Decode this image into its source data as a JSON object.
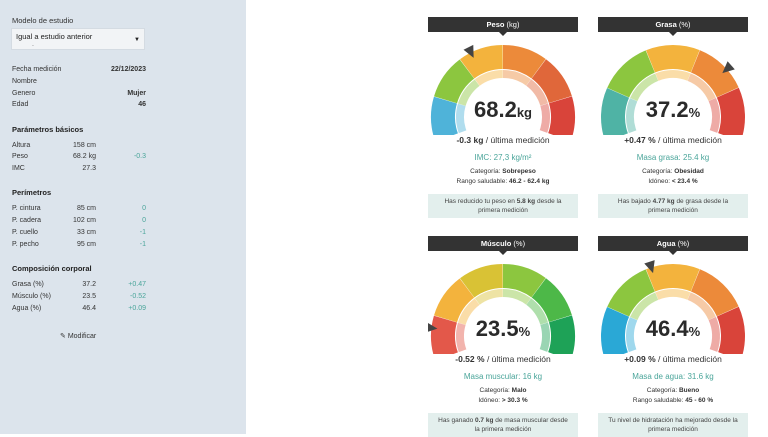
{
  "sidebar": {
    "estudio_label": "Modelo de estudio",
    "estudio_value": "Igual a estudio anterior",
    "estudio_dot": ".",
    "info": [
      {
        "key": "Fecha medición",
        "value": "22/12/2023"
      },
      {
        "key": "Nombre",
        "value": ""
      },
      {
        "key": "Genero",
        "value": "Mujer"
      },
      {
        "key": "Edad",
        "value": "46"
      }
    ],
    "basicos_title": "Parámetros básicos",
    "basicos": [
      {
        "key": "Altura",
        "value": "158 cm",
        "delta": ""
      },
      {
        "key": "Peso",
        "value": "68.2 kg",
        "delta": "-0.3"
      },
      {
        "key": "IMC",
        "value": "27.3",
        "delta": ""
      }
    ],
    "perimetros_title": "Perímetros",
    "perimetros": [
      {
        "key": "P. cintura",
        "value": "85 cm",
        "delta": "0"
      },
      {
        "key": "P. cadera",
        "value": "102 cm",
        "delta": "0"
      },
      {
        "key": "P. cuello",
        "value": "33 cm",
        "delta": "-1"
      },
      {
        "key": "P. pecho",
        "value": "95 cm",
        "delta": "-1"
      }
    ],
    "composicion_title": "Composición corporal",
    "composicion": [
      {
        "key": "Grasa (%)",
        "value": "37.2",
        "delta": "+0.47"
      },
      {
        "key": "Músculo (%)",
        "value": "23.5",
        "delta": "-0.52"
      },
      {
        "key": "Agua (%)",
        "value": "46.4",
        "delta": "+0.09"
      }
    ],
    "modificar_label": "Modificar"
  },
  "cards": {
    "peso": {
      "title": "Peso",
      "unit_title": "(kg)",
      "value": "68.2",
      "unit": "kg",
      "delta_value": "-0.3 kg",
      "delta_text": "/ última medición",
      "teal_label": "IMC:",
      "teal_value": "27,3 kg/m²",
      "line1_label": "Categoría:",
      "line1_value": "Sobrepeso",
      "line2_label": "Rango saludable:",
      "line2_value": "46.2 - 62.4 kg",
      "note_a": "Has reducido tu peso en",
      "note_b": "5.8 kg",
      "note_c": "desde la primera medición",
      "colors": [
        "#4fb3d9",
        "#8cc63f",
        "#f3b33d",
        "#ec8a3a",
        "#e0673a",
        "#d9443a"
      ],
      "marker": 0.38
    },
    "grasa": {
      "title": "Grasa",
      "unit_title": "(%)",
      "value": "37.2",
      "unit": "%",
      "delta_value": "+0.47 %",
      "delta_text": "/ última medición",
      "teal_label": "Masa grasa:",
      "teal_value": "25.4 kg",
      "line1_label": "Categoría:",
      "line1_value": "Obesidad",
      "line2_label": "Idóneo:",
      "line2_value": "< 23.4 %",
      "note_a": "Has bajado",
      "note_b": "4.77 kg",
      "note_c": "de grasa desde la primera medición",
      "colors": [
        "#4fb3a5",
        "#8cc63f",
        "#f3b33d",
        "#ec8a3a",
        "#d9443a"
      ],
      "marker": 0.72
    },
    "musculo": {
      "title": "Músculo",
      "unit_title": "(%)",
      "value": "23.5",
      "unit": "%",
      "delta_value": "-0.52 %",
      "delta_text": "/ última medición",
      "teal_label": "Masa muscular:",
      "teal_value": "16 kg",
      "line1_label": "Categoría:",
      "line1_value": "Malo",
      "line2_label": "Idóneo:",
      "line2_value": "> 30.3 %",
      "note_a": "Has ganado",
      "note_b": "0.7 kg",
      "note_c": "de masa muscular desde la primera medición",
      "colors": [
        "#e3584a",
        "#f3b33d",
        "#d9c235",
        "#8cc63f",
        "#4db848",
        "#1ea257"
      ],
      "marker": 0.12
    },
    "agua": {
      "title": "Agua",
      "unit_title": "(%)",
      "value": "46.4",
      "unit": "%",
      "delta_value": "+0.09 %",
      "delta_text": "/ última medición",
      "teal_label": "Masa de agua:",
      "teal_value": "31.6 kg",
      "line1_label": "Categoría:",
      "line1_value": "Bueno",
      "line2_label": "Rango saludable:",
      "line2_value": "45 - 60 %",
      "note_a": "Tu nivel de hidratación ha mejorado desde la primera medición",
      "note_b": "",
      "note_c": "",
      "colors": [
        "#2aa8d6",
        "#8cc63f",
        "#f3b33d",
        "#ec8a3a",
        "#d9443a"
      ],
      "marker": 0.42
    }
  }
}
